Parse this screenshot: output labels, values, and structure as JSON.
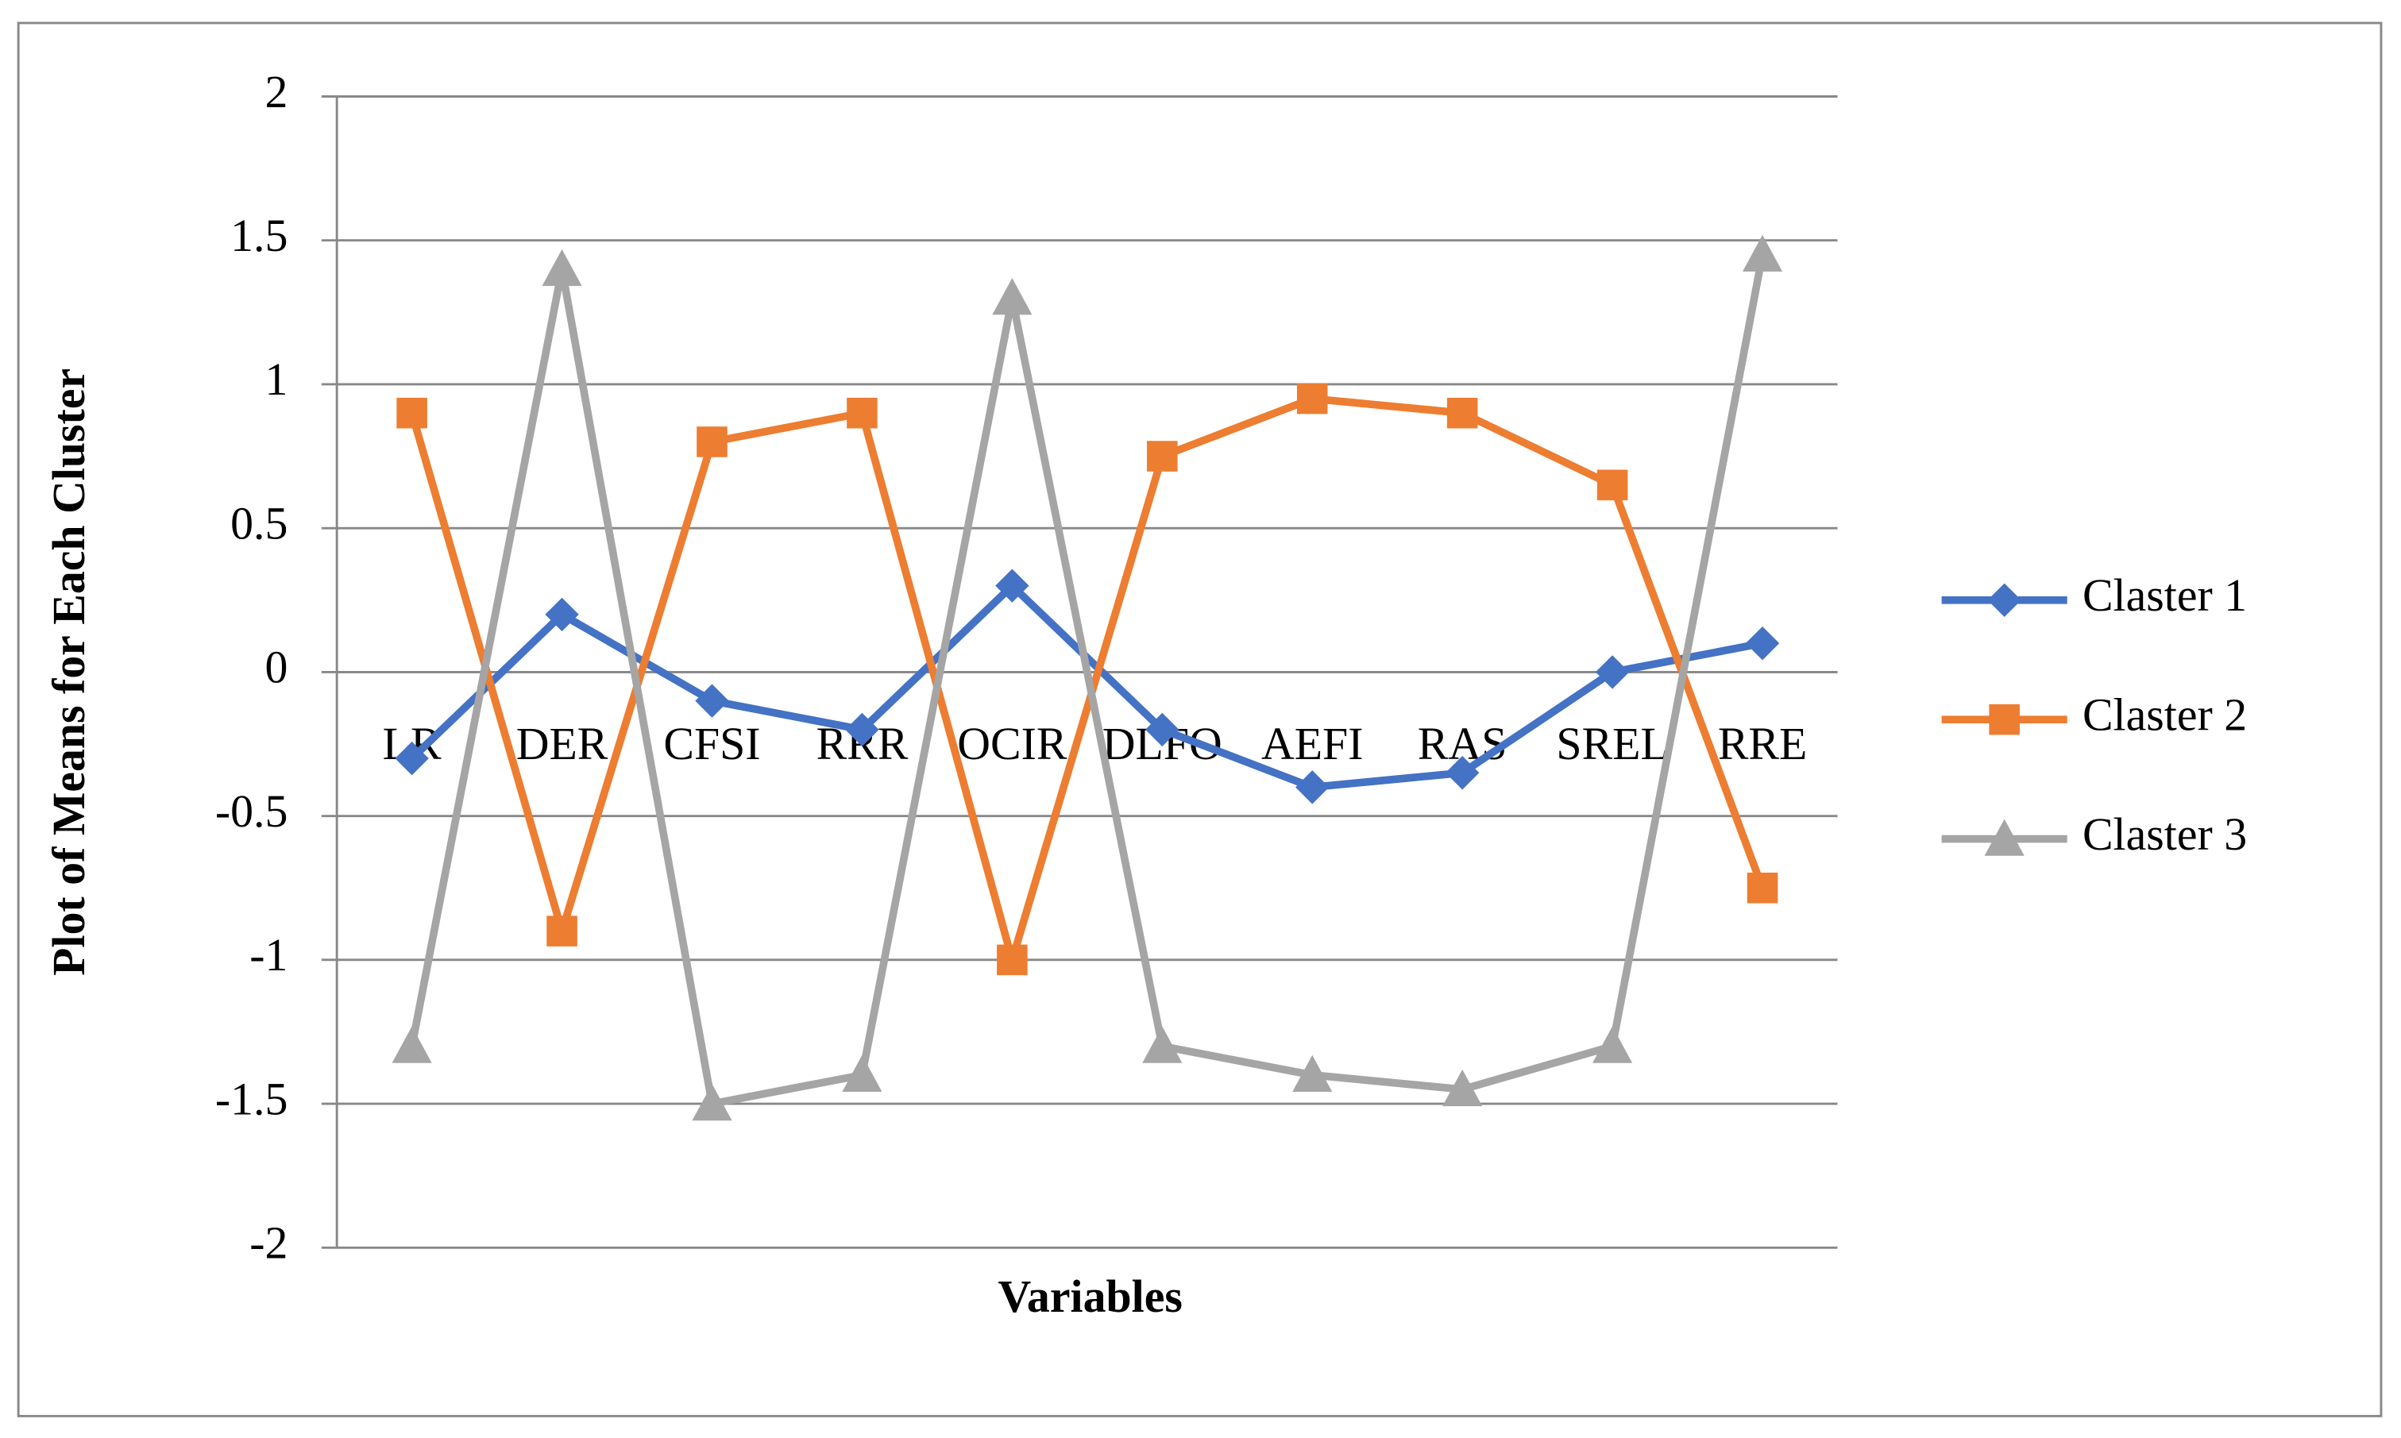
{
  "chart_data": {
    "type": "line",
    "x_label": "Variables",
    "y_label": "Plot of Means for Each Cluster",
    "categories": [
      "LR",
      "DER",
      "CFSI",
      "RRR",
      "OCIR",
      "DLFO",
      "AEFI",
      "RAS",
      "SREL",
      "RRE"
    ],
    "series": [
      {
        "name": "Claster 1",
        "color": "#4472c4",
        "marker": "diamond",
        "values": [
          -0.3,
          0.2,
          -0.1,
          -0.2,
          0.3,
          -0.2,
          -0.4,
          -0.35,
          0,
          0.1
        ]
      },
      {
        "name": "Claster 2",
        "color": "#ed7d31",
        "marker": "square",
        "values": [
          0.9,
          -0.9,
          0.8,
          0.9,
          -1.0,
          0.75,
          0.95,
          0.9,
          0.65,
          -0.75
        ]
      },
      {
        "name": "Claster 3",
        "color": "#a5a5a5",
        "marker": "triangle",
        "values": [
          -1.3,
          1.4,
          -1.5,
          -1.4,
          1.3,
          -1.3,
          -1.4,
          -1.45,
          -1.3,
          1.45
        ]
      }
    ],
    "ylim": [
      -2,
      2
    ],
    "yticks": [
      2,
      1.5,
      1,
      0.5,
      0,
      -0.5,
      -1,
      -1.5,
      -2
    ],
    "grid": true,
    "legend": "right"
  }
}
